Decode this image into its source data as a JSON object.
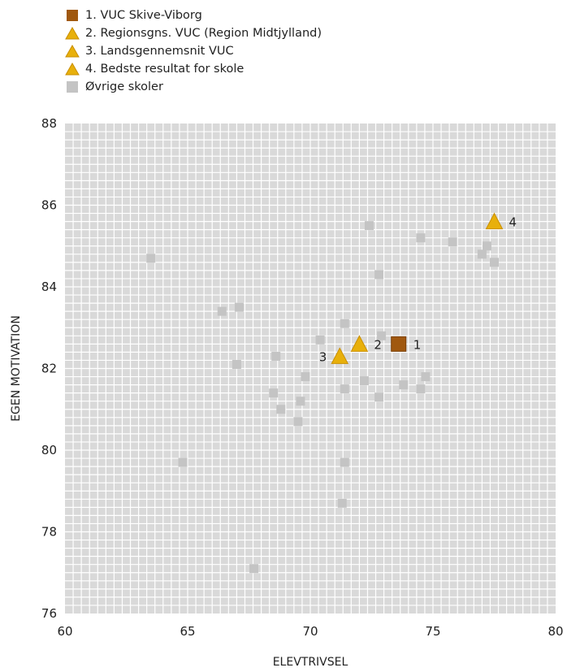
{
  "colors": {
    "skive": "#A0580F",
    "triangle": "#E8B00B",
    "triangle_edge": "#C98E00",
    "others": "#C4C4C4",
    "plot_bg": "#D9D9D9",
    "grid": "#FFFFFF"
  },
  "legend": [
    {
      "label": "1. VUC Skive-Viborg",
      "marker": "square",
      "color": "#A0580F"
    },
    {
      "label": "2. Regionsgns. VUC (Region Midtjylland)",
      "marker": "triangle",
      "color": "#E8B00B"
    },
    {
      "label": "3. Landsgennemsnit VUC",
      "marker": "triangle",
      "color": "#E8B00B"
    },
    {
      "label": "4. Bedste resultat for skole",
      "marker": "triangle",
      "color": "#E8B00B"
    },
    {
      "label": "Øvrige skoler",
      "marker": "square",
      "color": "#C4C4C4"
    }
  ],
  "chart_data": {
    "type": "scatter",
    "xlabel": "ELEVTRIVSEL",
    "ylabel": "EGEN MOTIVATION",
    "xlim": [
      60,
      80
    ],
    "ylim": [
      76,
      88
    ],
    "xticks": [
      60,
      65,
      70,
      75,
      80
    ],
    "yticks": [
      76,
      78,
      80,
      82,
      84,
      86,
      88
    ],
    "grid": true,
    "legend_position": "top-left",
    "series": [
      {
        "name": "1. VUC Skive-Viborg",
        "marker": "square",
        "points": [
          {
            "x": 73.6,
            "y": 82.6,
            "label": "1"
          }
        ]
      },
      {
        "name": "2. Regionsgns. VUC (Region Midtjylland)",
        "marker": "triangle",
        "points": [
          {
            "x": 72.0,
            "y": 82.6,
            "label": "2"
          }
        ]
      },
      {
        "name": "3. Landsgennemsnit VUC",
        "marker": "triangle",
        "points": [
          {
            "x": 71.2,
            "y": 82.3,
            "label": "3"
          }
        ]
      },
      {
        "name": "4. Bedste resultat for skole",
        "marker": "triangle",
        "points": [
          {
            "x": 77.5,
            "y": 85.6,
            "label": "4"
          }
        ]
      },
      {
        "name": "Øvrige skoler",
        "marker": "square",
        "points": [
          {
            "x": 63.5,
            "y": 84.7
          },
          {
            "x": 64.8,
            "y": 79.7
          },
          {
            "x": 66.4,
            "y": 83.4
          },
          {
            "x": 67.1,
            "y": 83.5
          },
          {
            "x": 67.0,
            "y": 82.1
          },
          {
            "x": 67.7,
            "y": 77.1
          },
          {
            "x": 68.6,
            "y": 82.3
          },
          {
            "x": 68.5,
            "y": 81.4
          },
          {
            "x": 68.8,
            "y": 81.0
          },
          {
            "x": 69.5,
            "y": 80.7
          },
          {
            "x": 69.6,
            "y": 81.2
          },
          {
            "x": 69.8,
            "y": 81.8
          },
          {
            "x": 70.4,
            "y": 82.7
          },
          {
            "x": 71.4,
            "y": 83.1
          },
          {
            "x": 71.4,
            "y": 81.5
          },
          {
            "x": 71.4,
            "y": 79.7
          },
          {
            "x": 71.3,
            "y": 78.7
          },
          {
            "x": 72.4,
            "y": 85.5
          },
          {
            "x": 72.8,
            "y": 84.3
          },
          {
            "x": 72.9,
            "y": 82.8
          },
          {
            "x": 72.2,
            "y": 81.7
          },
          {
            "x": 72.8,
            "y": 81.3
          },
          {
            "x": 73.8,
            "y": 81.6
          },
          {
            "x": 74.5,
            "y": 81.5
          },
          {
            "x": 74.7,
            "y": 81.8
          },
          {
            "x": 74.5,
            "y": 85.2
          },
          {
            "x": 75.8,
            "y": 85.1
          },
          {
            "x": 77.2,
            "y": 85.0
          },
          {
            "x": 77.0,
            "y": 84.8
          },
          {
            "x": 77.5,
            "y": 84.6
          }
        ]
      }
    ]
  }
}
